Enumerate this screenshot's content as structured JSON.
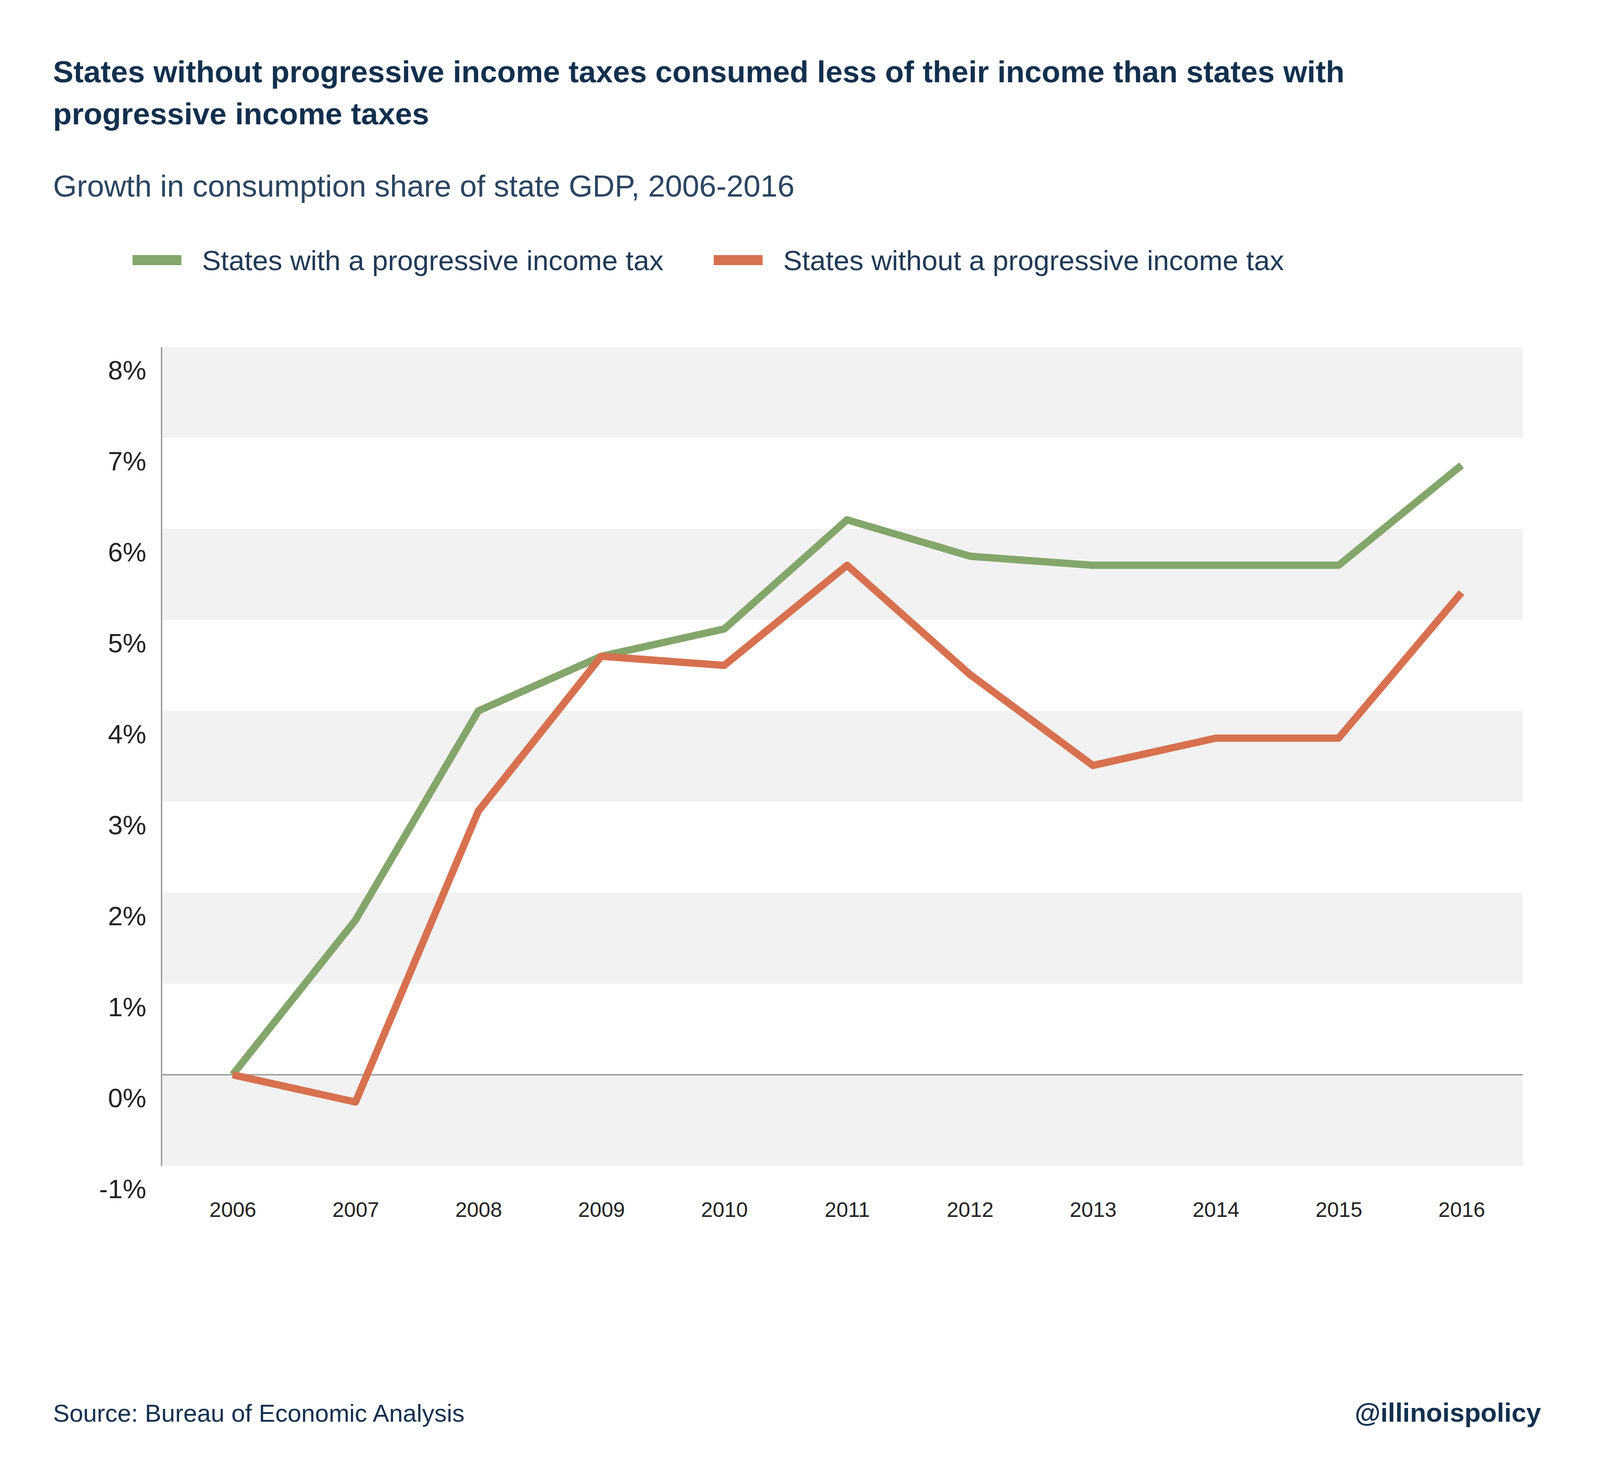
{
  "chart_data": {
    "type": "line",
    "title": "States without progressive income taxes consumed less of their income than states with progressive income taxes",
    "subtitle": "Growth in consumption share of state GDP, 2006-2016",
    "annotations": [
      "Source: Bureau of Economic Analysis",
      "@illinoispolicy"
    ],
    "categories": [
      "2006",
      "2007",
      "2008",
      "2009",
      "2010",
      "2011",
      "2012",
      "2013",
      "2014",
      "2015",
      "2016"
    ],
    "series": [
      {
        "name": "States with a progressive income tax",
        "color": "#84a66a",
        "values": [
          0,
          1.7,
          4.0,
          4.6,
          4.9,
          6.1,
          5.7,
          5.6,
          5.6,
          5.6,
          6.7
        ]
      },
      {
        "name": "States without a progressive income tax",
        "color": "#d7714f",
        "values": [
          0,
          -0.3,
          2.9,
          4.6,
          4.5,
          5.6,
          4.4,
          3.4,
          3.7,
          3.7,
          5.3
        ]
      }
    ],
    "ylim": [
      -1,
      8
    ],
    "yticks": [
      {
        "value": -1,
        "label": "-1%"
      },
      {
        "value": 0,
        "label": "0%"
      },
      {
        "value": 1,
        "label": "1%"
      },
      {
        "value": 2,
        "label": "2%"
      },
      {
        "value": 3,
        "label": "3%"
      },
      {
        "value": 4,
        "label": "4%"
      },
      {
        "value": 5,
        "label": "5%"
      },
      {
        "value": 6,
        "label": "6%"
      },
      {
        "value": 7,
        "label": "7%"
      },
      {
        "value": 8,
        "label": "8%"
      }
    ],
    "grid": true,
    "legend": "top"
  }
}
